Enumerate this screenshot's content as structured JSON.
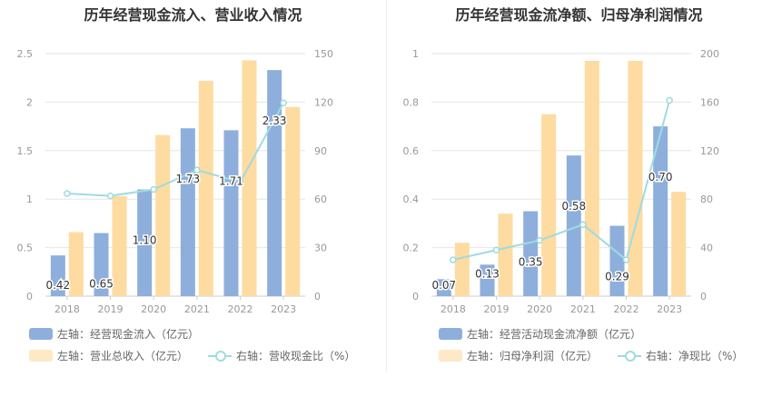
{
  "colors": {
    "primary": "#8eafdc",
    "secondary": "#fedba1",
    "line": "#9fdbe0",
    "grid": "#e6e6e6",
    "axis_text": "#999999"
  },
  "left": {
    "title": "历年经营现金流入、营业收入情况",
    "legend": {
      "primary": "左轴：经营现金流入（亿元）",
      "secondary": "左轴：营业总收入（亿元）",
      "line": "右轴：营收现金比（%）"
    }
  },
  "right": {
    "title": "历年经营现金流净额、归母净利润情况",
    "legend": {
      "primary": "左轴：经营活动现金流净额（亿元）",
      "secondary": "左轴：归母净利润（亿元）",
      "line": "右轴：净现比（%）"
    }
  },
  "chart_data": [
    {
      "type": "bar",
      "title": "历年经营现金流入、营业收入情况",
      "categories": [
        "2018",
        "2019",
        "2020",
        "2021",
        "2022",
        "2023"
      ],
      "ylim_left": [
        0,
        2.5
      ],
      "left_ticks": [
        "0",
        "0.5",
        "1",
        "1.5",
        "2",
        "2.5"
      ],
      "ylim_right": [
        0,
        150
      ],
      "right_ticks": [
        "0",
        "30",
        "60",
        "90",
        "120",
        "150"
      ],
      "grid": true,
      "legend_position": "bottom-left",
      "series": [
        {
          "name": "左轴：经营现金流入（亿元）",
          "axis": "left",
          "kind": "bar",
          "values": [
            0.42,
            0.65,
            1.1,
            1.73,
            1.71,
            2.33
          ],
          "labels": [
            "0.42",
            "0.65",
            "1.10",
            "1.73",
            "1.71",
            "2.33"
          ]
        },
        {
          "name": "左轴：营业总收入（亿元）",
          "axis": "left",
          "kind": "bar",
          "values": [
            0.66,
            1.03,
            1.66,
            2.22,
            2.43,
            1.95
          ]
        },
        {
          "name": "右轴：营收现金比（%）",
          "axis": "right",
          "kind": "line",
          "values": [
            63.5,
            62.0,
            66.0,
            78.0,
            70.5,
            119.5
          ]
        }
      ]
    },
    {
      "type": "bar",
      "title": "历年经营现金流净额、归母净利润情况",
      "categories": [
        "2018",
        "2019",
        "2020",
        "2021",
        "2022",
        "2023"
      ],
      "ylim_left": [
        0,
        1
      ],
      "left_ticks": [
        "0",
        "0.2",
        "0.4",
        "0.6",
        "0.8",
        "1"
      ],
      "ylim_right": [
        0,
        200
      ],
      "right_ticks": [
        "0",
        "40",
        "80",
        "120",
        "160",
        "200"
      ],
      "grid": true,
      "legend_position": "bottom-left",
      "series": [
        {
          "name": "左轴：经营活动现金流净额（亿元）",
          "axis": "left",
          "kind": "bar",
          "values": [
            0.07,
            0.13,
            0.35,
            0.58,
            0.29,
            0.7
          ],
          "labels": [
            "0.07",
            "0.13",
            "0.35",
            "0.58",
            "0.29",
            "0.70"
          ]
        },
        {
          "name": "左轴：归母净利润（亿元）",
          "axis": "left",
          "kind": "bar",
          "values": [
            0.22,
            0.34,
            0.75,
            0.97,
            0.97,
            0.43
          ]
        },
        {
          "name": "右轴：净现比（%）",
          "axis": "right",
          "kind": "line",
          "values": [
            30.0,
            38.0,
            46.0,
            59.0,
            30.0,
            161.5
          ]
        }
      ]
    }
  ]
}
